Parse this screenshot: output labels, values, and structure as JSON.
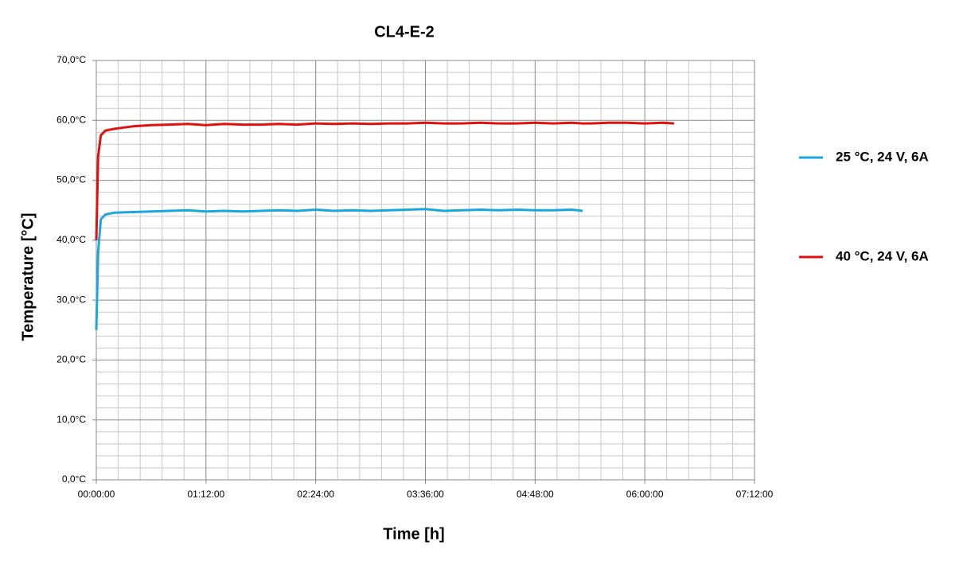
{
  "chart_data": {
    "type": "line",
    "title": "CL4-E-2",
    "x_label": "Time [h]",
    "y_label": "Temperature [°C]",
    "x": [
      0,
      0.02,
      0.05,
      0.1,
      0.2,
      0.4,
      0.6,
      0.8,
      1,
      1.2,
      1.4,
      1.6,
      1.8,
      2,
      2.2,
      2.4,
      2.6,
      2.8,
      3,
      3.2,
      3.4,
      3.6,
      3.8,
      4,
      4.2,
      4.4,
      4.6,
      4.8,
      5,
      5.2,
      5.32,
      5.4,
      5.6,
      5.8,
      6,
      6.2,
      6.32
    ],
    "series": [
      {
        "name": "25 °C, 24 V, 6A",
        "color": "#1aa7e0",
        "values": [
          25,
          38,
          43.5,
          44.3,
          44.6,
          44.7,
          44.8,
          44.9,
          45,
          44.8,
          44.9,
          44.8,
          44.9,
          45,
          44.9,
          45.1,
          44.9,
          45,
          44.9,
          45,
          45.1,
          45.2,
          44.9,
          45,
          45.1,
          45,
          45.1,
          45,
          45,
          45.1,
          44.9,
          null,
          null,
          null,
          null,
          null,
          null
        ]
      },
      {
        "name": "40 °C, 24 V, 6A",
        "color": "#e01010",
        "values": [
          40,
          54,
          57.5,
          58.3,
          58.6,
          59,
          59.2,
          59.3,
          59.4,
          59.2,
          59.4,
          59.3,
          59.3,
          59.4,
          59.3,
          59.5,
          59.4,
          59.5,
          59.4,
          59.5,
          59.5,
          59.6,
          59.5,
          59.5,
          59.6,
          59.5,
          59.5,
          59.6,
          59.5,
          59.6,
          59.5,
          59.5,
          59.6,
          59.6,
          59.5,
          59.6,
          59.5
        ]
      }
    ],
    "xlim": [
      0,
      7.2
    ],
    "xticks": [
      {
        "value": 0,
        "label": "00:00:00"
      },
      {
        "value": 1.2,
        "label": "01:12:00"
      },
      {
        "value": 2.4,
        "label": "02:24:00"
      },
      {
        "value": 3.6,
        "label": "03:36:00"
      },
      {
        "value": 4.8,
        "label": "04:48:00"
      },
      {
        "value": 6,
        "label": "06:00:00"
      },
      {
        "value": 7.2,
        "label": "07:12:00"
      }
    ],
    "ylim": [
      0,
      70
    ],
    "yticks": [
      {
        "value": 0,
        "label": "0,0°C"
      },
      {
        "value": 10,
        "label": "10,0°C"
      },
      {
        "value": 20,
        "label": "20,0°C"
      },
      {
        "value": 30,
        "label": "30,0°C"
      },
      {
        "value": 40,
        "label": "40,0°C"
      },
      {
        "value": 50,
        "label": "50,0°C"
      },
      {
        "value": 60,
        "label": "60,0°C"
      },
      {
        "value": 70,
        "label": "70,0°C"
      }
    ],
    "grid": true,
    "minor_grid": 5,
    "legend": "right"
  }
}
